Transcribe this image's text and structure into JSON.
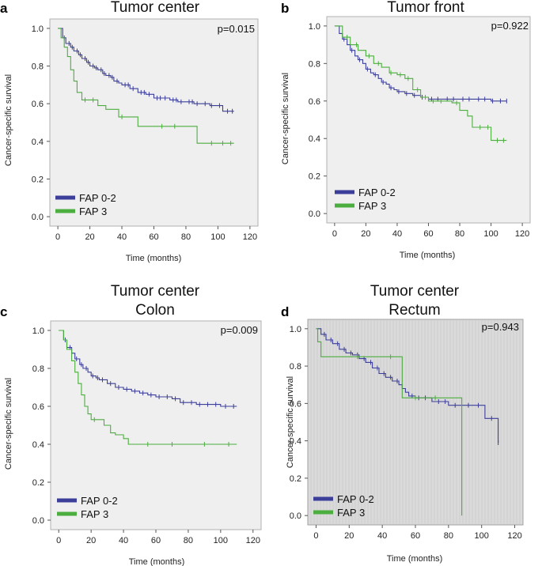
{
  "chart_data": [
    {
      "panel": "a",
      "type": "line",
      "title_lines": [
        "Tumor center"
      ],
      "pvalue": "p=0.015",
      "xlabel": "Time (months)",
      "ylabel": "Cancer-specific survival",
      "xlim": [
        -5,
        125
      ],
      "ylim": [
        -0.05,
        1.05
      ],
      "xticks": [
        0,
        20,
        40,
        60,
        80,
        100,
        120
      ],
      "yticks": [
        0.0,
        0.2,
        0.4,
        0.6,
        0.8,
        1.0
      ],
      "xtick_labels": [
        "0",
        "20",
        "40",
        "60",
        "80",
        "100",
        "120"
      ],
      "ytick_labels": [
        "0.0",
        "0.2",
        "0.4",
        "0.6",
        "0.8",
        "1.0"
      ],
      "background": "light",
      "series": [
        {
          "name": "FAP 0-2",
          "color": "#3c3f9a",
          "x": [
            0,
            3,
            5,
            8,
            10,
            13,
            15,
            18,
            20,
            23,
            25,
            28,
            30,
            33,
            35,
            38,
            40,
            45,
            50,
            55,
            60,
            65,
            70,
            75,
            80,
            85,
            90,
            95,
            100,
            103,
            105,
            110
          ],
          "y": [
            1.0,
            0.95,
            0.92,
            0.9,
            0.88,
            0.86,
            0.84,
            0.82,
            0.8,
            0.79,
            0.78,
            0.76,
            0.75,
            0.74,
            0.72,
            0.71,
            0.7,
            0.68,
            0.66,
            0.65,
            0.63,
            0.63,
            0.62,
            0.61,
            0.61,
            0.6,
            0.6,
            0.59,
            0.59,
            0.56,
            0.56,
            0.56
          ],
          "censor_x": [
            4,
            7,
            9,
            12,
            14,
            17,
            19,
            22,
            24,
            27,
            29,
            32,
            34,
            37,
            42,
            44,
            47,
            52,
            54,
            57,
            62,
            64,
            67,
            72,
            74,
            77,
            82,
            84,
            87,
            92,
            96,
            101,
            106,
            109
          ]
        },
        {
          "name": "FAP 3",
          "color": "#4cae3f",
          "x": [
            0,
            2,
            4,
            6,
            8,
            10,
            12,
            15,
            20,
            25,
            30,
            38,
            45,
            50,
            60,
            87,
            90,
            110
          ],
          "y": [
            1.0,
            0.95,
            0.9,
            0.85,
            0.78,
            0.72,
            0.66,
            0.62,
            0.62,
            0.59,
            0.57,
            0.53,
            0.53,
            0.48,
            0.48,
            0.39,
            0.39,
            0.39
          ],
          "censor_x": [
            17,
            22,
            40,
            65,
            73,
            96,
            103,
            108
          ]
        }
      ]
    },
    {
      "panel": "b",
      "type": "line",
      "title_lines": [
        "Tumor front"
      ],
      "pvalue": "p=0.922",
      "xlabel": "Time (months)",
      "ylabel": "Cancer-specific survival",
      "xlim": [
        -5,
        125
      ],
      "ylim": [
        -0.05,
        1.05
      ],
      "xticks": [
        0,
        20,
        40,
        60,
        80,
        100,
        120
      ],
      "yticks": [
        0.0,
        0.2,
        0.4,
        0.6,
        0.8,
        1.0
      ],
      "xtick_labels": [
        "0",
        "20",
        "40",
        "60",
        "80",
        "100",
        "120"
      ],
      "ytick_labels": [
        "0.0",
        "0.2",
        "0.4",
        "0.6",
        "0.8",
        "1.0"
      ],
      "background": "light",
      "series": [
        {
          "name": "FAP 0-2",
          "color": "#3c3f9a",
          "x": [
            0,
            3,
            5,
            8,
            10,
            13,
            15,
            18,
            20,
            23,
            25,
            28,
            30,
            33,
            35,
            38,
            40,
            45,
            50,
            55,
            60,
            70,
            80,
            90,
            100,
            110
          ],
          "y": [
            1.0,
            0.96,
            0.93,
            0.9,
            0.87,
            0.84,
            0.82,
            0.8,
            0.77,
            0.75,
            0.74,
            0.72,
            0.7,
            0.69,
            0.67,
            0.66,
            0.65,
            0.64,
            0.63,
            0.62,
            0.61,
            0.61,
            0.61,
            0.61,
            0.6,
            0.6
          ],
          "censor_x": [
            6,
            11,
            16,
            21,
            26,
            31,
            36,
            41,
            46,
            51,
            56,
            62,
            66,
            72,
            76,
            82,
            86,
            92,
            96,
            101,
            106,
            110
          ]
        },
        {
          "name": "FAP 3",
          "color": "#4cae3f",
          "x": [
            0,
            5,
            10,
            15,
            20,
            25,
            30,
            35,
            40,
            45,
            50,
            55,
            60,
            70,
            75,
            80,
            85,
            88,
            95,
            100,
            105,
            110
          ],
          "y": [
            1.0,
            0.94,
            0.9,
            0.87,
            0.84,
            0.8,
            0.78,
            0.75,
            0.74,
            0.72,
            0.66,
            0.62,
            0.6,
            0.6,
            0.59,
            0.55,
            0.52,
            0.46,
            0.46,
            0.39,
            0.39,
            0.39
          ],
          "censor_x": [
            8,
            14,
            22,
            28,
            36,
            42,
            47,
            53,
            58,
            63,
            68,
            78,
            93,
            98,
            104,
            108
          ]
        }
      ]
    },
    {
      "panel": "c",
      "type": "line",
      "title_lines": [
        "Tumor center",
        "Colon"
      ],
      "pvalue": "p=0.009",
      "xlabel": "Time (months)",
      "ylabel": "Cancer-specific survival",
      "xlim": [
        -5,
        125
      ],
      "ylim": [
        -0.05,
        1.05
      ],
      "xticks": [
        0,
        20,
        40,
        60,
        80,
        100,
        120
      ],
      "yticks": [
        0.0,
        0.2,
        0.4,
        0.6,
        0.8,
        1.0
      ],
      "xtick_labels": [
        "0",
        "20",
        "40",
        "60",
        "80",
        "100",
        "120"
      ],
      "ytick_labels": [
        "0.0",
        "0.2",
        "0.4",
        "0.6",
        "0.8",
        "1.0"
      ],
      "background": "light",
      "series": [
        {
          "name": "FAP 0-2",
          "color": "#3c3f9a",
          "x": [
            0,
            3,
            5,
            8,
            10,
            13,
            15,
            18,
            20,
            23,
            25,
            30,
            35,
            40,
            45,
            50,
            55,
            60,
            65,
            70,
            75,
            80,
            85,
            90,
            95,
            100,
            110
          ],
          "y": [
            1.0,
            0.95,
            0.91,
            0.88,
            0.85,
            0.82,
            0.8,
            0.78,
            0.76,
            0.75,
            0.74,
            0.72,
            0.7,
            0.69,
            0.68,
            0.67,
            0.66,
            0.65,
            0.65,
            0.64,
            0.62,
            0.62,
            0.61,
            0.61,
            0.61,
            0.6,
            0.6
          ],
          "censor_x": [
            4,
            7,
            11,
            14,
            17,
            21,
            24,
            27,
            32,
            37,
            42,
            47,
            52,
            57,
            62,
            67,
            72,
            77,
            82,
            87,
            92,
            97,
            103,
            108
          ]
        },
        {
          "name": "FAP 3",
          "color": "#4cae3f",
          "x": [
            0,
            3,
            5,
            8,
            10,
            12,
            14,
            16,
            18,
            20,
            25,
            28,
            32,
            35,
            40,
            43,
            50,
            60,
            80,
            100,
            110
          ],
          "y": [
            1.0,
            0.95,
            0.9,
            0.84,
            0.78,
            0.72,
            0.66,
            0.6,
            0.56,
            0.53,
            0.53,
            0.5,
            0.46,
            0.45,
            0.43,
            0.4,
            0.4,
            0.4,
            0.4,
            0.4,
            0.4
          ],
          "censor_x": [
            22,
            55,
            70,
            90,
            105
          ]
        }
      ]
    },
    {
      "panel": "d",
      "type": "line",
      "title_lines": [
        "Tumor center",
        "Rectum"
      ],
      "pvalue": "p=0.943",
      "xlabel": "Time (months)",
      "ylabel": "Cancer-specific survival",
      "xlim": [
        -5,
        125
      ],
      "ylim": [
        -0.05,
        1.05
      ],
      "xticks": [
        0,
        20,
        40,
        60,
        80,
        100,
        120
      ],
      "yticks": [
        0.0,
        0.2,
        0.4,
        0.6,
        0.8,
        1.0
      ],
      "xtick_labels": [
        "0",
        "20",
        "40",
        "60",
        "80",
        "100",
        "120"
      ],
      "ytick_labels": [
        "0.0",
        "0.2",
        "0.4",
        "0.6",
        "0.8",
        "1.0"
      ],
      "background": "dark",
      "series": [
        {
          "name": "FAP 0-2",
          "color": "#3c3f9a",
          "x": [
            0,
            3,
            6,
            10,
            14,
            18,
            22,
            26,
            30,
            34,
            38,
            42,
            46,
            50,
            52,
            54,
            56,
            60,
            70,
            80,
            95,
            102,
            110
          ],
          "y": [
            1.0,
            0.97,
            0.94,
            0.92,
            0.89,
            0.87,
            0.86,
            0.84,
            0.82,
            0.79,
            0.76,
            0.74,
            0.72,
            0.7,
            0.68,
            0.66,
            0.64,
            0.63,
            0.61,
            0.59,
            0.59,
            0.52,
            0.39
          ],
          "censor_x": [
            5,
            9,
            13,
            17,
            21,
            25,
            29,
            33,
            37,
            41,
            45,
            49,
            58,
            62,
            66,
            74,
            78,
            84,
            92,
            98,
            106,
            110
          ]
        },
        {
          "name": "FAP 3",
          "color": "#4cae3f",
          "x": [
            0,
            1,
            3,
            20,
            50,
            52,
            88,
            88
          ],
          "y": [
            1.0,
            0.93,
            0.85,
            0.85,
            0.85,
            0.63,
            0.63,
            0.0
          ],
          "censor_x": [
            25,
            45,
            60,
            72
          ]
        }
      ]
    }
  ]
}
